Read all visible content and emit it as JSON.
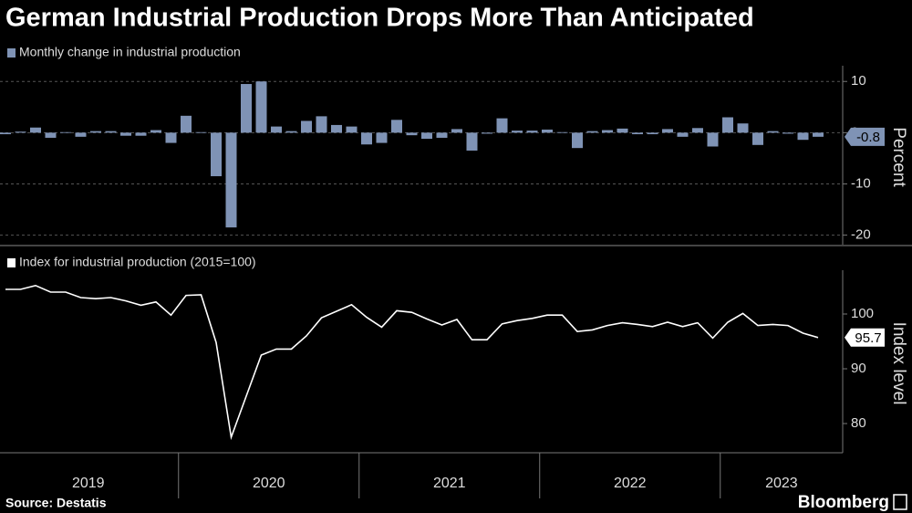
{
  "title": "German Industrial Production Drops More Than Anticipated",
  "source": "Source: Destatis",
  "brand": "Bloomberg",
  "years": [
    "2019",
    "2020",
    "2021",
    "2022",
    "2023"
  ],
  "chart_data": [
    {
      "type": "bar",
      "legend": "Monthly change in industrial production",
      "y_label": "Percent",
      "color": "#7f93b5",
      "values": [
        -0.3,
        0.2,
        1.0,
        -1.0,
        0.1,
        -0.8,
        0.3,
        0.3,
        -0.6,
        -0.6,
        0.5,
        -2.0,
        3.3,
        0.1,
        -8.5,
        -18.5,
        9.5,
        10.0,
        1.2,
        0.3,
        2.3,
        3.2,
        1.5,
        1.2,
        -2.3,
        -2.0,
        2.5,
        -0.5,
        -1.2,
        -1.0,
        0.7,
        -3.5,
        -0.2,
        2.8,
        0.4,
        0.4,
        0.6,
        0.1,
        -3.0,
        0.3,
        0.5,
        0.8,
        -0.3,
        -0.3,
        0.7,
        -0.8,
        0.9,
        -2.7,
        3.0,
        1.8,
        -2.4,
        0.3,
        -0.2,
        -1.4,
        -0.8
      ],
      "ylim": [
        -21.5,
        12
      ],
      "yticks": [
        10,
        0,
        -10,
        -20
      ],
      "grid": true
    },
    {
      "type": "line",
      "legend": "Index for industrial production (2015=100)",
      "y_label": "Index level",
      "color": "#ffffff",
      "values": [
        104.5,
        104.5,
        105.2,
        104.0,
        104.0,
        103.0,
        102.8,
        103.0,
        102.4,
        101.6,
        102.2,
        99.8,
        103.4,
        103.5,
        94.8,
        77.5,
        85.0,
        92.5,
        93.6,
        93.6,
        96.0,
        99.3,
        100.5,
        101.7,
        99.4,
        97.6,
        100.6,
        100.3,
        99.1,
        98.0,
        99.0,
        95.3,
        95.3,
        98.2,
        98.8,
        99.2,
        99.8,
        99.8,
        96.8,
        97.1,
        97.9,
        98.4,
        98.1,
        97.7,
        98.5,
        97.7,
        98.4,
        95.6,
        98.5,
        100.1,
        97.9,
        98.1,
        97.9,
        96.5,
        95.7
      ],
      "ylim": [
        75,
        107
      ],
      "yticks": [
        80,
        90,
        100
      ],
      "grid": false
    }
  ]
}
